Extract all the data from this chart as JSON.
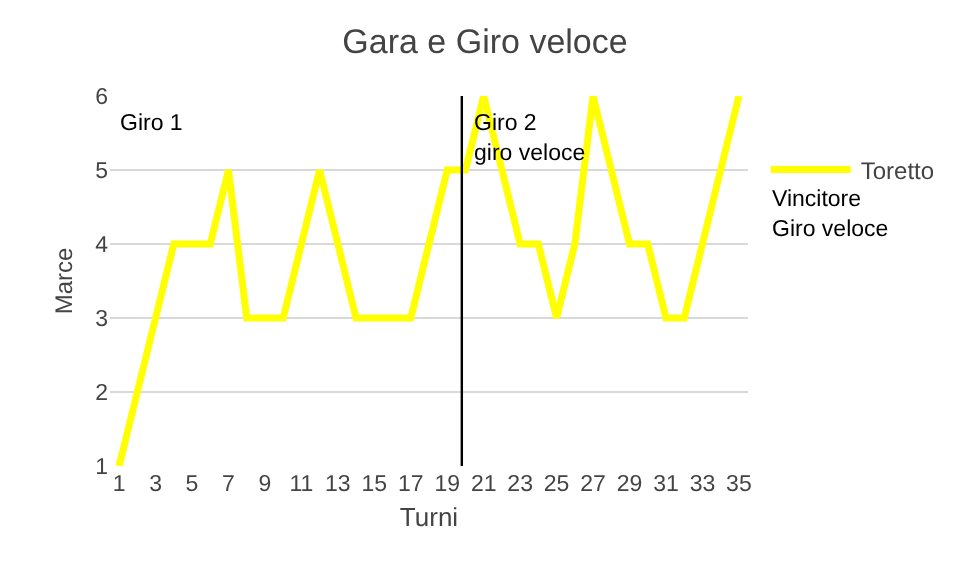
{
  "chart_data": {
    "type": "line",
    "title": "Gara e Giro veloce",
    "xlabel": "Turni",
    "ylabel": "Marce",
    "x": [
      1,
      2,
      3,
      4,
      5,
      6,
      7,
      8,
      9,
      10,
      11,
      12,
      13,
      14,
      15,
      16,
      17,
      18,
      19,
      20,
      21,
      22,
      23,
      24,
      25,
      26,
      27,
      28,
      29,
      30,
      31,
      32,
      33,
      34,
      35
    ],
    "series": [
      {
        "name": "Toretto",
        "color": "#ffff00",
        "values": [
          1,
          2,
          3,
          4,
          4,
          4,
          5,
          3,
          3,
          3,
          4,
          5,
          4,
          3,
          3,
          3,
          3,
          4,
          5,
          5,
          6,
          5,
          4,
          4,
          3,
          4,
          6,
          5,
          4,
          4,
          3,
          3,
          4,
          5,
          6
        ]
      }
    ],
    "xlim": [
      0.5,
      35.5
    ],
    "xticks": [
      1,
      3,
      5,
      7,
      9,
      11,
      13,
      15,
      17,
      19,
      21,
      23,
      25,
      27,
      29,
      31,
      33,
      35
    ],
    "ylim": [
      1,
      6
    ],
    "yticks": [
      1,
      2,
      3,
      4,
      5,
      6
    ],
    "ref_lines": [
      {
        "axis": "x",
        "value": 19.8,
        "color": "#000000"
      }
    ],
    "annotations": [
      "Giro 1",
      "Giro 2\ngiro veloce",
      "Vincitore\nGiro veloce"
    ],
    "grid": "y",
    "legend": "right",
    "marker": "none",
    "line_style": "solid"
  }
}
